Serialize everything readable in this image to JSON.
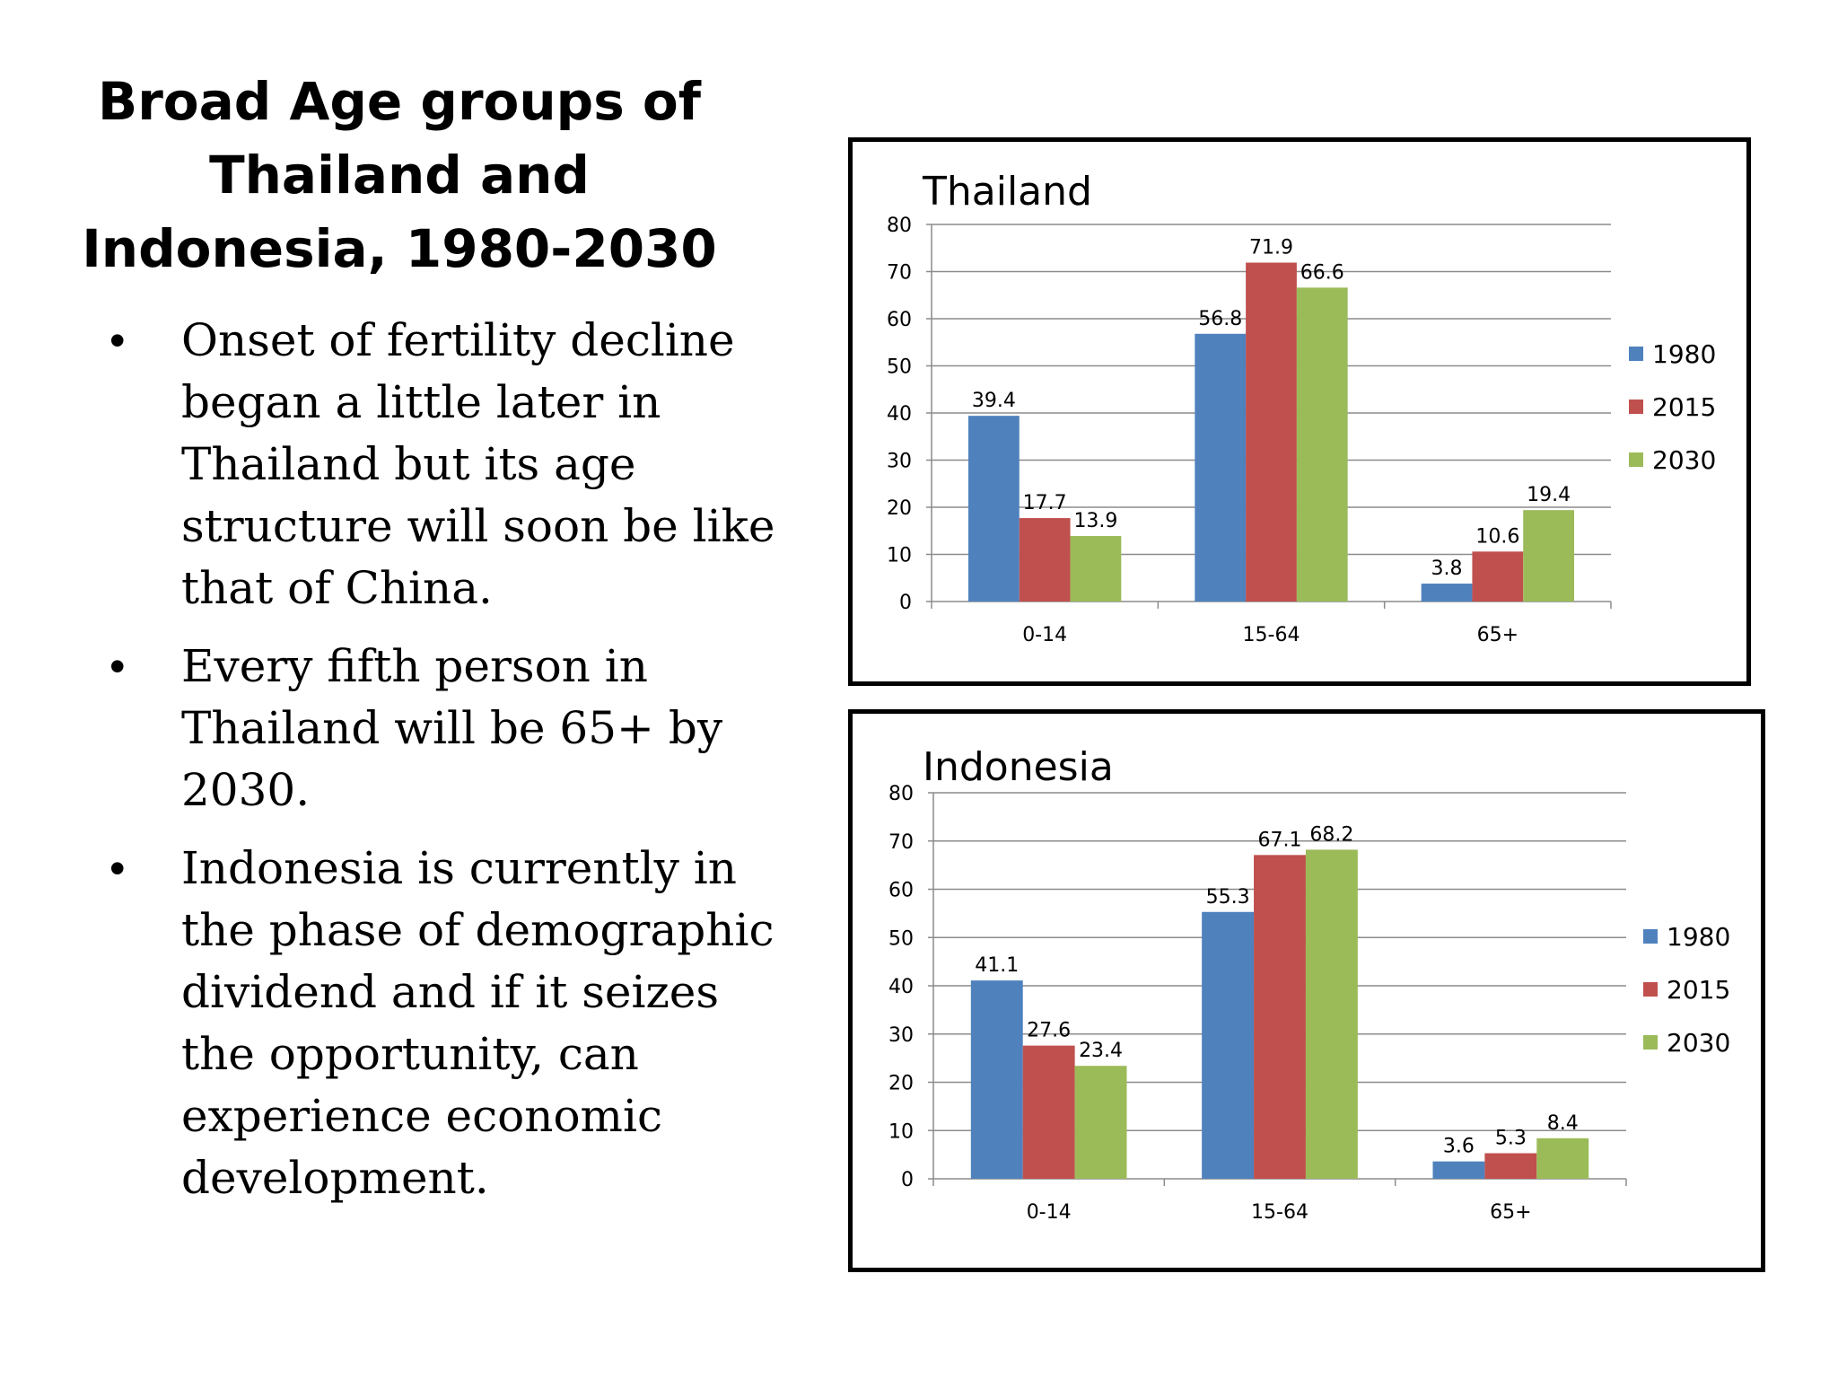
{
  "slide": {
    "title_lines": [
      "Broad Age groups of",
      "Thailand and",
      "Indonesia, 1980-2030"
    ],
    "bullet_symbol": "•",
    "bullets": [
      "Onset of fertility decline began a little later in Thailand but its age structure will soon be like that of China.",
      "Every fifth person in Thailand will be 65+ by 2030.",
      "Indonesia is currently in the phase of demographic dividend and if it seizes the opportunity, can experience economic development."
    ]
  },
  "colors": {
    "1980": "#4f81bd",
    "2015": "#c0504d",
    "2030": "#9bbb59",
    "gridline": "#8c8c8c",
    "axis": "#8c8c8c"
  },
  "chart_data": [
    {
      "type": "bar",
      "title": "Thailand",
      "categories": [
        "0-14",
        "15-64",
        "65+"
      ],
      "series": [
        {
          "name": "1980",
          "values": [
            39.4,
            56.8,
            3.8
          ]
        },
        {
          "name": "2015",
          "values": [
            17.7,
            71.9,
            10.6
          ]
        },
        {
          "name": "2030",
          "values": [
            13.9,
            66.6,
            19.4
          ]
        }
      ],
      "ylim": [
        0,
        80
      ],
      "yticks": [
        0,
        10,
        20,
        30,
        40,
        50,
        60,
        70,
        80
      ],
      "grid": true,
      "legend": "right",
      "data_labels": true
    },
    {
      "type": "bar",
      "title": "Indonesia",
      "categories": [
        "0-14",
        "15-64",
        "65+"
      ],
      "series": [
        {
          "name": "1980",
          "values": [
            41.1,
            55.3,
            3.6
          ]
        },
        {
          "name": "2015",
          "values": [
            27.6,
            67.1,
            5.3
          ]
        },
        {
          "name": "2030",
          "values": [
            23.4,
            68.2,
            8.4
          ]
        }
      ],
      "ylim": [
        0,
        80
      ],
      "yticks": [
        0,
        10,
        20,
        30,
        40,
        50,
        60,
        70,
        80
      ],
      "grid": true,
      "legend": "right",
      "data_labels": true
    }
  ]
}
